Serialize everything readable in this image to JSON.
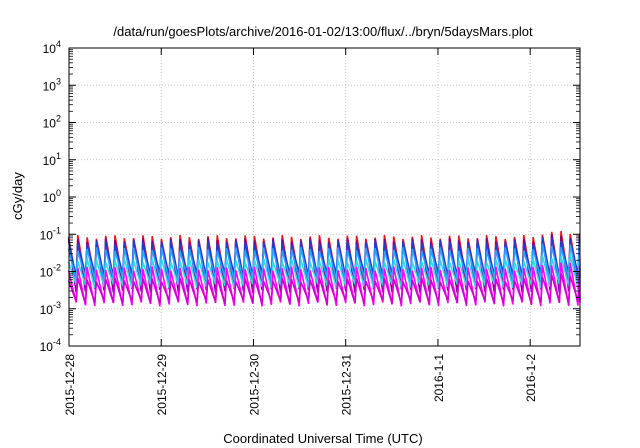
{
  "chart_data": {
    "type": "line",
    "title": "/data/run/goesPlots/archive/2016-01-02/13:00/flux/../bryn/5daysMars.plot",
    "xlabel": "Coordinated Universal Time (UTC)",
    "ylabel": "cGy/day",
    "yscale": "log",
    "ylim": [
      0.0001,
      10000
    ],
    "y_ticks": [
      {
        "base": "10",
        "exp": "-4"
      },
      {
        "base": "10",
        "exp": "-3"
      },
      {
        "base": "10",
        "exp": "-2"
      },
      {
        "base": "10",
        "exp": "-1"
      },
      {
        "base": "10",
        "exp": "0"
      },
      {
        "base": "10",
        "exp": "1"
      },
      {
        "base": "10",
        "exp": "2"
      },
      {
        "base": "10",
        "exp": "3"
      },
      {
        "base": "10",
        "exp": "4"
      }
    ],
    "x_start": "2015-12-28",
    "x_end": "2016-01-02 13:00",
    "x_range_days": [
      0,
      5.54
    ],
    "x_ticks": [
      {
        "label": "2015-12-28",
        "day": 0
      },
      {
        "label": "2015-12-29",
        "day": 1
      },
      {
        "label": "2015-12-30",
        "day": 2
      },
      {
        "label": "2015-12-31",
        "day": 3
      },
      {
        "label": "2016-1-1",
        "day": 4
      },
      {
        "label": "2016-1-2",
        "day": 5
      }
    ],
    "grid": true,
    "legend": "none",
    "pattern": "sawtooth, approx. 10 cycles per day",
    "series": [
      {
        "color": "#e41a1c",
        "peak": 0.085,
        "trough": 0.006,
        "late_peak": 0.11
      },
      {
        "color": "#7a0090",
        "peak": 0.07,
        "trough": 0.003,
        "late_peak": 0.09
      },
      {
        "color": "#1f3fd0",
        "peak": 0.06,
        "trough": 0.008,
        "late_peak": 0.075
      },
      {
        "color": "#2aa2ff",
        "peak": 0.04,
        "trough": 0.006,
        "late_peak": 0.05
      },
      {
        "color": "#30d8e8",
        "peak": 0.02,
        "trough": 0.004,
        "late_peak": 0.026
      },
      {
        "color": "#ff00ff",
        "peak": 0.012,
        "trough": 0.0013,
        "late_peak": 0.016
      },
      {
        "color": "#d000d0",
        "peak": 0.006,
        "trough": 0.0015,
        "late_peak": 0.008
      }
    ]
  }
}
